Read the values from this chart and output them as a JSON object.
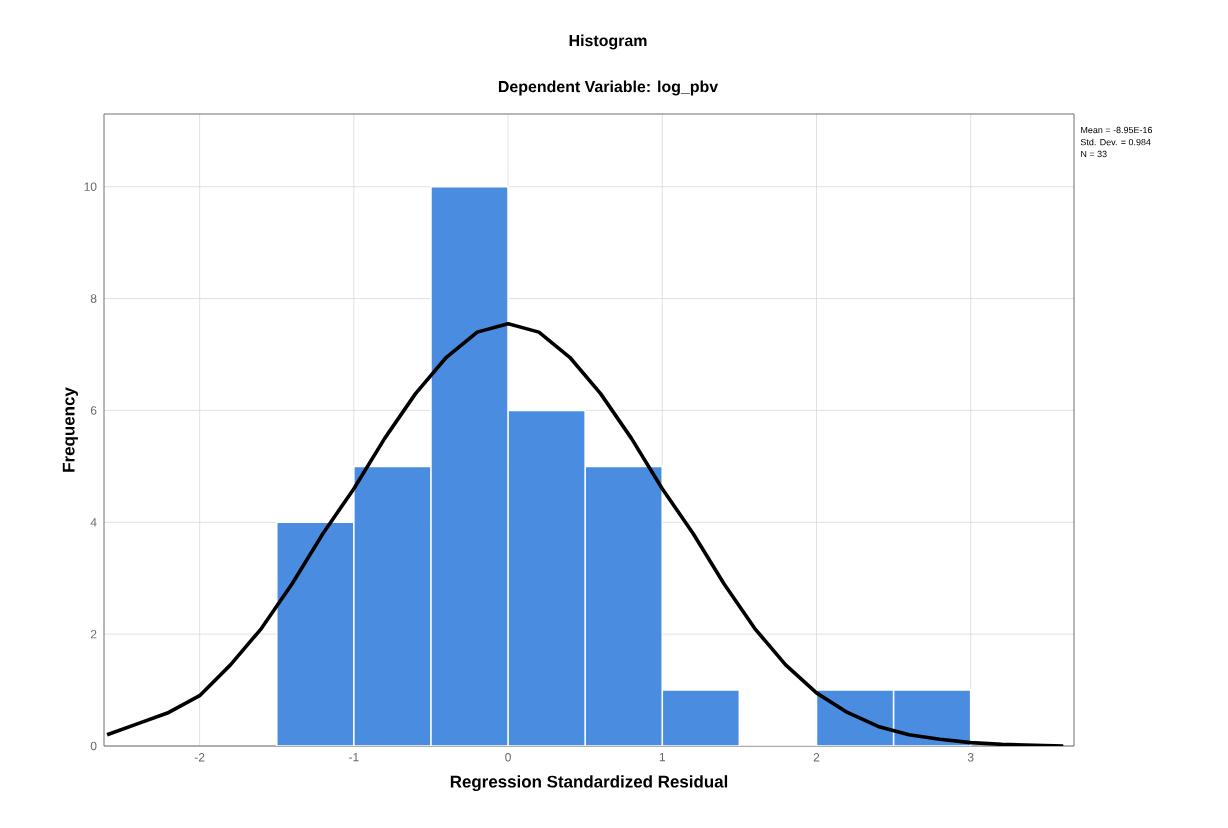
{
  "chart_data": {
    "type": "histogram",
    "title": "Histogram",
    "subtitle": "Dependent Variable: log_pbv",
    "xlabel": "Regression Standardized Residual",
    "ylabel": "Frequency",
    "bins": [
      -1.5,
      -1,
      -0.5,
      0,
      0.5,
      1,
      1.5,
      2,
      2.5,
      3
    ],
    "values": [
      4,
      5,
      10,
      6,
      5,
      1,
      0,
      1,
      1
    ],
    "color": "#4a8de0",
    "series": [
      {
        "type": "line",
        "color": "#000000",
        "x": [
          -2.6,
          -2.4,
          -2.2,
          -2,
          -1.8,
          -1.6,
          -1.4,
          -1.2,
          -1,
          -0.8,
          -0.6,
          -0.4,
          -0.2,
          0,
          0.2,
          0.4,
          0.6,
          0.8,
          1,
          1.2,
          1.4,
          1.6,
          1.8,
          2,
          2.2,
          2.4,
          2.6,
          2.8,
          3,
          3.2,
          3.6
        ],
        "values": [
          0.2,
          0.4,
          0.6,
          0.9,
          1.45,
          2.1,
          2.9,
          3.8,
          4.6,
          5.5,
          6.3,
          6.95,
          7.4,
          7.55,
          7.4,
          6.95,
          6.3,
          5.5,
          4.6,
          3.8,
          2.9,
          2.1,
          1.45,
          0.95,
          0.6,
          0.35,
          0.2,
          0.12,
          0.06,
          0.03,
          0
        ]
      }
    ],
    "xlim": [
      -2.62,
      3.67
    ],
    "ylim": [
      0,
      11.3
    ],
    "xticks": [
      -2,
      -1,
      0,
      1,
      2,
      3
    ],
    "yticks": [
      0,
      2,
      4,
      6,
      8,
      10
    ],
    "grid": true,
    "annotations": [
      "Mean = -8.95E-16",
      "Std. Dev. = 0.984",
      "N = 33"
    ]
  }
}
